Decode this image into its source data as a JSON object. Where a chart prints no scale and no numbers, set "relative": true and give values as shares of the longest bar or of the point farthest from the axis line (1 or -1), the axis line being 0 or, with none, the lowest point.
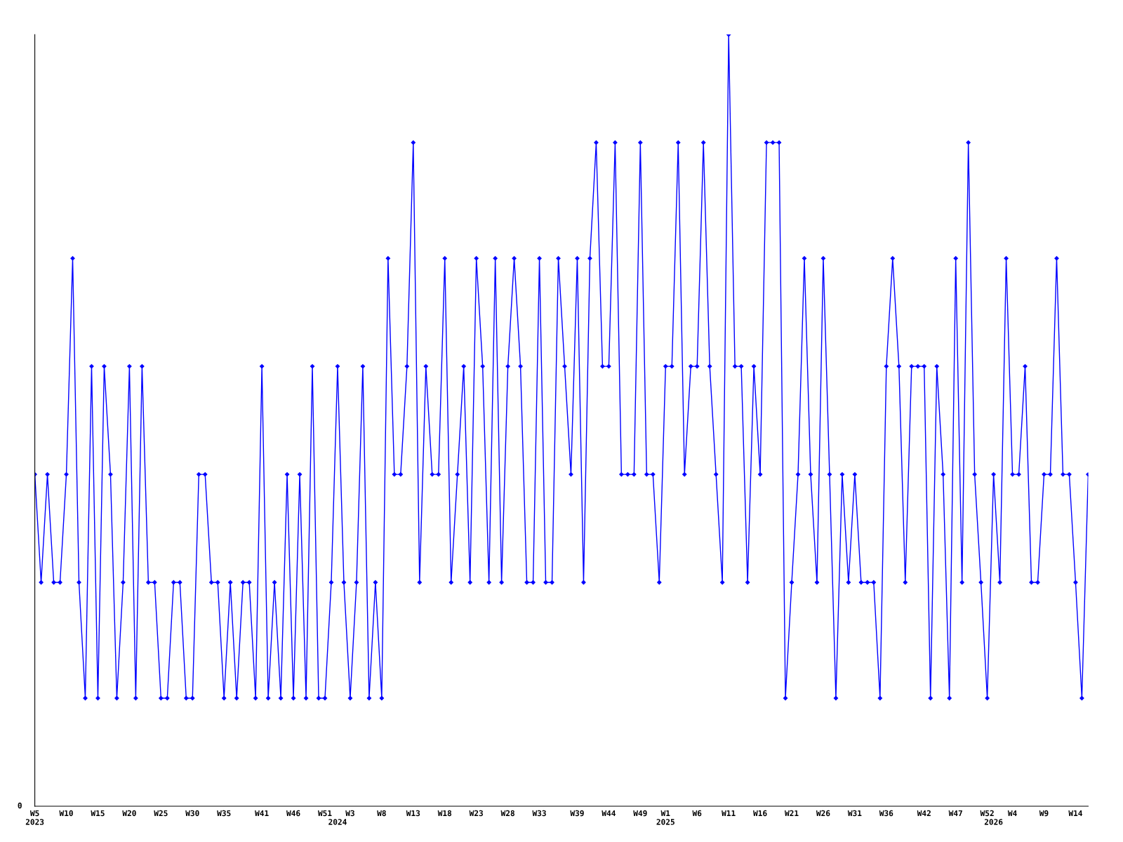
{
  "chart_data": {
    "type": "line",
    "relative": true,
    "marker": "diamond",
    "line_style": "solid",
    "grid": false,
    "legend": false,
    "annotations": [
      "0"
    ],
    "categories": [
      "W5\n2023",
      null,
      null,
      null,
      null,
      "W10",
      null,
      null,
      null,
      null,
      "W15",
      null,
      null,
      null,
      null,
      "W20",
      null,
      null,
      null,
      null,
      "W25",
      null,
      null,
      null,
      null,
      "W30",
      null,
      null,
      null,
      null,
      "W35",
      null,
      null,
      null,
      null,
      null,
      "W41",
      null,
      null,
      null,
      null,
      "W46",
      null,
      null,
      null,
      null,
      "W51",
      null,
      "\n2024",
      null,
      "W3",
      null,
      null,
      null,
      null,
      "W8",
      null,
      null,
      null,
      null,
      "W13",
      null,
      null,
      null,
      null,
      "W18",
      null,
      null,
      null,
      null,
      "W23",
      null,
      null,
      null,
      null,
      "W28",
      null,
      null,
      null,
      null,
      "W33",
      null,
      null,
      null,
      null,
      null,
      "W39",
      null,
      null,
      null,
      null,
      "W44",
      null,
      null,
      null,
      null,
      "W49",
      null,
      null,
      null,
      "W1\n2025",
      null,
      null,
      null,
      null,
      "W6",
      null,
      null,
      null,
      null,
      "W11",
      null,
      null,
      null,
      null,
      "W16",
      null,
      null,
      null,
      null,
      "W21",
      null,
      null,
      null,
      null,
      "W26",
      null,
      null,
      null,
      null,
      "W31",
      null,
      null,
      null,
      null,
      "W36",
      null,
      null,
      null,
      null,
      null,
      "W42",
      null,
      null,
      null,
      null,
      "W47",
      null,
      null,
      null,
      null,
      "W52",
      "\n2026",
      null,
      null,
      "W4",
      null,
      null,
      null,
      null,
      "W9",
      null,
      null,
      null,
      null,
      "W14",
      null,
      null
    ],
    "series": [
      {
        "color": "#0000ff",
        "values": [
          0.43,
          0.29,
          0.43,
          0.29,
          0.29,
          0.43,
          0.71,
          0.29,
          0.14,
          0.57,
          0.14,
          0.57,
          0.43,
          0.14,
          0.29,
          0.57,
          0.14,
          0.57,
          0.29,
          0.29,
          0.14,
          0.14,
          0.29,
          0.29,
          0.14,
          0.14,
          0.43,
          0.43,
          0.29,
          0.29,
          0.14,
          0.29,
          0.14,
          0.29,
          0.29,
          0.14,
          0.57,
          0.14,
          0.29,
          0.14,
          0.43,
          0.14,
          0.43,
          0.14,
          0.57,
          0.14,
          0.14,
          0.29,
          0.57,
          0.29,
          0.14,
          0.29,
          0.57,
          0.14,
          0.29,
          0.14,
          0.71,
          0.43,
          0.43,
          0.57,
          0.86,
          0.29,
          0.57,
          0.43,
          0.43,
          0.71,
          0.29,
          0.43,
          0.57,
          0.29,
          0.71,
          0.57,
          0.29,
          0.71,
          0.29,
          0.57,
          0.71,
          0.57,
          0.29,
          0.29,
          0.71,
          0.29,
          0.29,
          0.71,
          0.57,
          0.43,
          0.71,
          0.29,
          0.71,
          0.86,
          0.57,
          0.57,
          0.86,
          0.43,
          0.43,
          0.43,
          0.86,
          0.43,
          0.43,
          0.29,
          0.57,
          0.57,
          0.86,
          0.43,
          0.57,
          0.57,
          0.86,
          0.57,
          0.43,
          0.29,
          1,
          0.57,
          0.57,
          0.29,
          0.57,
          0.43,
          0.86,
          0.86,
          0.86,
          0.14,
          0.29,
          0.43,
          0.71,
          0.43,
          0.29,
          0.71,
          0.43,
          0.14,
          0.43,
          0.29,
          0.43,
          0.29,
          0.29,
          0.29,
          0.14,
          0.57,
          0.71,
          0.57,
          0.29,
          0.57,
          0.57,
          0.57,
          0.14,
          0.57,
          0.43,
          0.14,
          0.71,
          0.29,
          0.86,
          0.43,
          0.29,
          0.14,
          0.43,
          0.29,
          0.71,
          0.43,
          0.43,
          0.57,
          0.29,
          0.29,
          0.43,
          0.43,
          0.71,
          0.43,
          0.43,
          0.29,
          0.14,
          0.43
        ]
      }
    ]
  }
}
